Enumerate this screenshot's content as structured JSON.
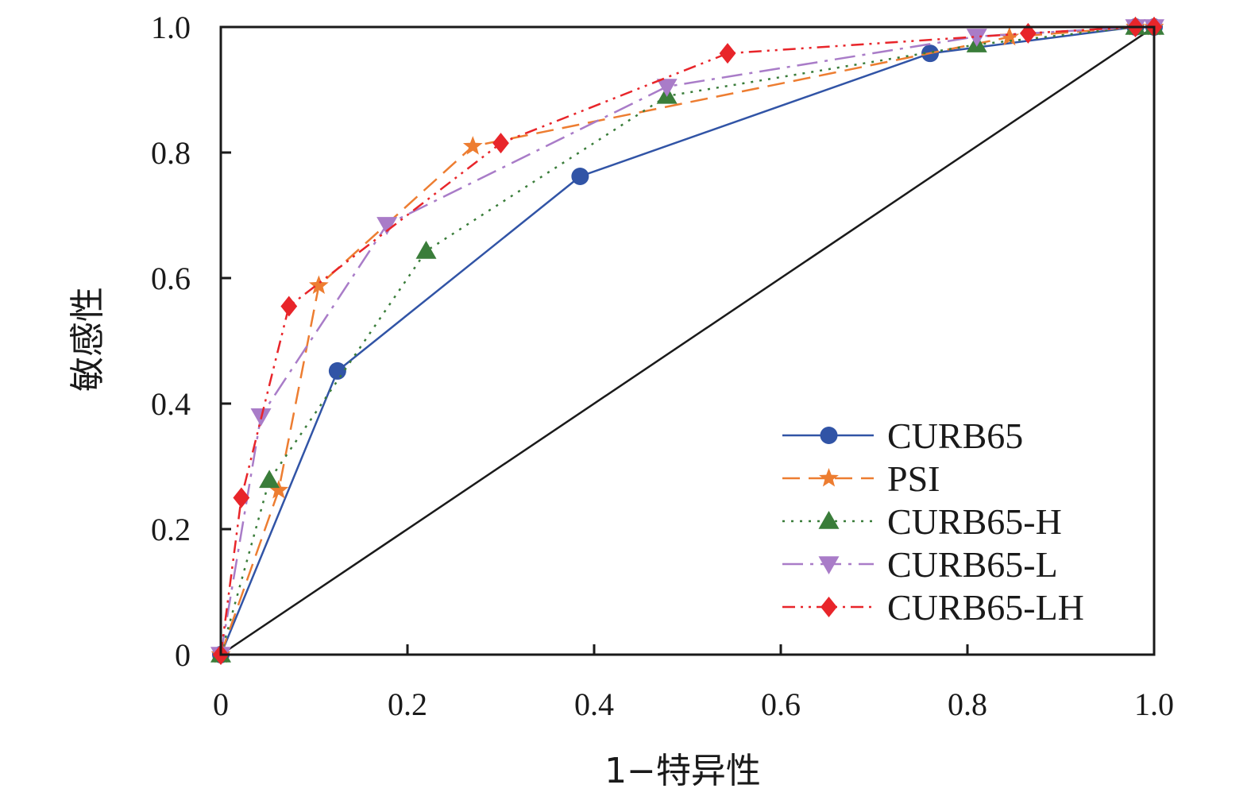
{
  "chart_data": {
    "type": "line",
    "title": "",
    "xlabel": "1−特异性",
    "ylabel": "敏感性",
    "xlim": [
      0,
      1.0
    ],
    "ylim": [
      0,
      1.0
    ],
    "xticks": [
      0,
      0.2,
      0.4,
      0.6,
      0.8,
      1.0
    ],
    "xtick_labels": [
      "0",
      "0.2",
      "0.4",
      "0.6",
      "0.8",
      "1.0"
    ],
    "yticks": [
      0,
      0.2,
      0.4,
      0.6,
      0.8,
      1.0
    ],
    "ytick_labels": [
      "0",
      "0.2",
      "0.4",
      "0.6",
      "0.8",
      "1.0"
    ],
    "grid": false,
    "legend_position": "bottom-right",
    "reference_line": {
      "x": [
        0,
        1.0
      ],
      "y": [
        0,
        1.0
      ],
      "color": "#1a1a1a"
    },
    "series": [
      {
        "name": "CURB65",
        "color": "#3154a6",
        "dash": "solid",
        "marker": "circle",
        "x": [
          0,
          0.125,
          0.385,
          0.76,
          0.98,
          1.0
        ],
        "y": [
          0,
          0.452,
          0.762,
          0.958,
          1.0,
          1.0
        ]
      },
      {
        "name": "PSI",
        "color": "#ed7d31",
        "dash": "dashed",
        "marker": "star",
        "x": [
          0,
          0.062,
          0.105,
          0.27,
          0.845,
          0.98,
          1.0
        ],
        "y": [
          0,
          0.262,
          0.588,
          0.81,
          0.984,
          1.0,
          1.0
        ]
      },
      {
        "name": "CURB65-H",
        "color": "#3a7d3a",
        "dash": "dotted",
        "marker": "triangle-up",
        "x": [
          0,
          0.052,
          0.22,
          0.478,
          0.81,
          0.98,
          1.0
        ],
        "y": [
          0,
          0.278,
          0.643,
          0.89,
          0.972,
          1.0,
          1.0
        ]
      },
      {
        "name": "CURB65-L",
        "color": "#a97cc8",
        "dash": "long-dash-dot",
        "marker": "triangle-down",
        "x": [
          0,
          0.043,
          0.178,
          0.478,
          0.81,
          0.98,
          1.0
        ],
        "y": [
          0,
          0.38,
          0.685,
          0.905,
          0.985,
          1.0,
          1.0
        ]
      },
      {
        "name": "CURB65-LH",
        "color": "#e8252a",
        "dash": "dash-dot-dot",
        "marker": "diamond",
        "x": [
          0,
          0.022,
          0.073,
          0.3,
          0.543,
          0.865,
          0.98,
          1.0
        ],
        "y": [
          0,
          0.25,
          0.555,
          0.815,
          0.958,
          0.99,
          1.0,
          1.0
        ]
      }
    ]
  }
}
